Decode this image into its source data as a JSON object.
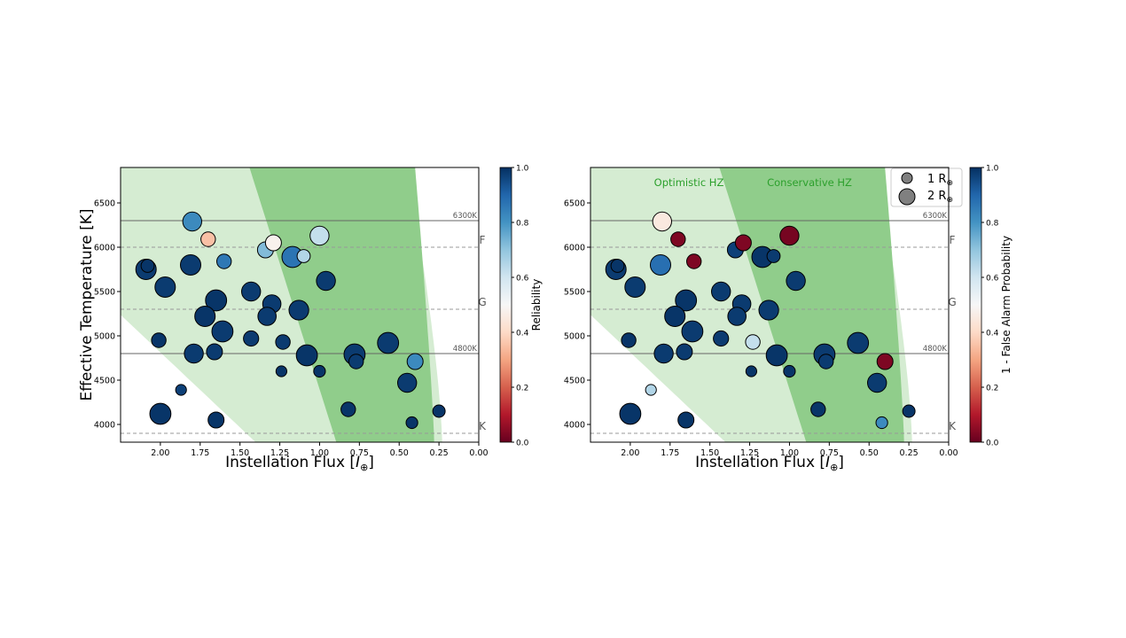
{
  "chart_data": [
    {
      "type": "scatter",
      "xlabel": "Instellation Flux [",
      "xlabel_unit": "I",
      "xlabel_end": "]",
      "ylabel": "Effective Temperature [K]",
      "colorbar_label": "Reliability",
      "colorbar_ticks": [
        "0.0",
        "0.2",
        "0.4",
        "0.6",
        "0.8",
        "1.0"
      ],
      "xticks": [
        "2.00",
        "1.75",
        "1.50",
        "1.25",
        "1.00",
        "0.75",
        "0.50",
        "0.25",
        "0.00"
      ],
      "yticks": [
        "4000",
        "4500",
        "5000",
        "5500",
        "6000",
        "6500"
      ],
      "xlim": [
        2.25,
        0.0
      ],
      "ylim": [
        3800,
        6900
      ],
      "x_inverted": true,
      "lines": [
        {
          "y": 6300,
          "style": "solid",
          "label": "6300K"
        },
        {
          "y": 6000,
          "style": "dashed",
          "label": "F"
        },
        {
          "y": 5300,
          "style": "dashed",
          "label": "G"
        },
        {
          "y": 4800,
          "style": "solid",
          "label": "4800K"
        },
        {
          "y": 3900,
          "style": "dashed",
          "label": "K"
        }
      ],
      "points": [
        {
          "x": 2.09,
          "y": 5750,
          "r": 1.4,
          "c": 0.98
        },
        {
          "x": 2.08,
          "y": 5790,
          "r": 0.9,
          "c": 0.99
        },
        {
          "x": 1.97,
          "y": 5550,
          "r": 1.4,
          "c": 0.98
        },
        {
          "x": 2.01,
          "y": 4950,
          "r": 1.0,
          "c": 0.99
        },
        {
          "x": 2.0,
          "y": 4120,
          "r": 1.45,
          "c": 0.99
        },
        {
          "x": 1.87,
          "y": 4390,
          "r": 0.75,
          "c": 0.97
        },
        {
          "x": 1.8,
          "y": 6290,
          "r": 1.3,
          "c": 0.82
        },
        {
          "x": 1.7,
          "y": 6090,
          "r": 1.0,
          "c": 0.35
        },
        {
          "x": 1.81,
          "y": 5800,
          "r": 1.4,
          "c": 0.98
        },
        {
          "x": 1.6,
          "y": 5840,
          "r": 1.0,
          "c": 0.86
        },
        {
          "x": 1.65,
          "y": 5400,
          "r": 1.45,
          "c": 0.99
        },
        {
          "x": 1.72,
          "y": 5220,
          "r": 1.4,
          "c": 0.99
        },
        {
          "x": 1.61,
          "y": 5050,
          "r": 1.45,
          "c": 0.98
        },
        {
          "x": 1.79,
          "y": 4800,
          "r": 1.3,
          "c": 0.98
        },
        {
          "x": 1.66,
          "y": 4820,
          "r": 1.1,
          "c": 0.98
        },
        {
          "x": 1.65,
          "y": 4050,
          "r": 1.1,
          "c": 0.99
        },
        {
          "x": 1.43,
          "y": 5500,
          "r": 1.3,
          "c": 0.98
        },
        {
          "x": 1.34,
          "y": 5970,
          "r": 1.1,
          "c": 0.72
        },
        {
          "x": 1.29,
          "y": 6050,
          "r": 1.1,
          "c": 0.48
        },
        {
          "x": 1.3,
          "y": 5360,
          "r": 1.25,
          "c": 0.98
        },
        {
          "x": 1.33,
          "y": 5220,
          "r": 1.25,
          "c": 0.98
        },
        {
          "x": 1.43,
          "y": 4970,
          "r": 1.05,
          "c": 0.98
        },
        {
          "x": 1.17,
          "y": 5890,
          "r": 1.45,
          "c": 0.87
        },
        {
          "x": 1.1,
          "y": 5900,
          "r": 0.9,
          "c": 0.65
        },
        {
          "x": 1.0,
          "y": 6130,
          "r": 1.3,
          "c": 0.62
        },
        {
          "x": 1.13,
          "y": 5290,
          "r": 1.35,
          "c": 0.98
        },
        {
          "x": 0.96,
          "y": 5620,
          "r": 1.3,
          "c": 0.98
        },
        {
          "x": 1.23,
          "y": 4930,
          "r": 1.0,
          "c": 0.98
        },
        {
          "x": 1.24,
          "y": 4600,
          "r": 0.75,
          "c": 0.99
        },
        {
          "x": 1.08,
          "y": 4780,
          "r": 1.45,
          "c": 0.99
        },
        {
          "x": 1.0,
          "y": 4600,
          "r": 0.8,
          "c": 0.99
        },
        {
          "x": 0.78,
          "y": 4790,
          "r": 1.45,
          "c": 0.98
        },
        {
          "x": 0.77,
          "y": 4710,
          "r": 1.0,
          "c": 0.98
        },
        {
          "x": 0.82,
          "y": 4170,
          "r": 1.0,
          "c": 0.99
        },
        {
          "x": 0.57,
          "y": 4920,
          "r": 1.45,
          "c": 0.98
        },
        {
          "x": 0.45,
          "y": 4470,
          "r": 1.3,
          "c": 0.98
        },
        {
          "x": 0.4,
          "y": 4710,
          "r": 1.1,
          "c": 0.82
        },
        {
          "x": 0.42,
          "y": 4020,
          "r": 0.8,
          "c": 0.99
        },
        {
          "x": 0.25,
          "y": 4150,
          "r": 0.85,
          "c": 0.99
        }
      ]
    },
    {
      "type": "scatter",
      "xlabel": "Instellation Flux [",
      "xlabel_unit": "I",
      "xlabel_end": "]",
      "ylabel": "",
      "colorbar_label": "1 - False Alarm Probability",
      "colorbar_ticks": [
        "0.0",
        "0.2",
        "0.4",
        "0.6",
        "0.8",
        "1.0"
      ],
      "xticks": [
        "2.00",
        "1.75",
        "1.50",
        "1.25",
        "1.00",
        "0.75",
        "0.50",
        "0.25",
        "0.00"
      ],
      "yticks": [
        "4000",
        "4500",
        "5000",
        "5500",
        "6000",
        "6500"
      ],
      "xlim": [
        2.25,
        0.0
      ],
      "ylim": [
        3800,
        6900
      ],
      "x_inverted": true,
      "zone_labels": {
        "optimistic": "Optimistic HZ",
        "conservative": "Conservative HZ"
      },
      "legend": {
        "placement": "top-right",
        "entries": [
          {
            "text": "1 R",
            "sub": "⊕",
            "r": 1.0
          },
          {
            "text": "2 R",
            "sub": "⊕",
            "r": 2.0
          }
        ]
      },
      "lines": [
        {
          "y": 6300,
          "style": "solid",
          "label": "6300K"
        },
        {
          "y": 6000,
          "style": "dashed",
          "label": "F"
        },
        {
          "y": 5300,
          "style": "dashed",
          "label": "G"
        },
        {
          "y": 4800,
          "style": "solid",
          "label": "4800K"
        },
        {
          "y": 3900,
          "style": "dashed",
          "label": "K"
        }
      ],
      "points": [
        {
          "x": 2.09,
          "y": 5750,
          "r": 1.4,
          "c": 0.98
        },
        {
          "x": 2.08,
          "y": 5790,
          "r": 0.9,
          "c": 0.99
        },
        {
          "x": 1.97,
          "y": 5550,
          "r": 1.4,
          "c": 0.98
        },
        {
          "x": 2.01,
          "y": 4950,
          "r": 1.0,
          "c": 0.99
        },
        {
          "x": 2.0,
          "y": 4120,
          "r": 1.45,
          "c": 0.99
        },
        {
          "x": 1.87,
          "y": 4390,
          "r": 0.75,
          "c": 0.65
        },
        {
          "x": 1.8,
          "y": 6290,
          "r": 1.3,
          "c": 0.45
        },
        {
          "x": 1.7,
          "y": 6090,
          "r": 1.0,
          "c": 0.03
        },
        {
          "x": 1.81,
          "y": 5800,
          "r": 1.4,
          "c": 0.88
        },
        {
          "x": 1.6,
          "y": 5840,
          "r": 1.0,
          "c": 0.03
        },
        {
          "x": 1.65,
          "y": 5400,
          "r": 1.45,
          "c": 0.99
        },
        {
          "x": 1.72,
          "y": 5220,
          "r": 1.4,
          "c": 0.99
        },
        {
          "x": 1.61,
          "y": 5050,
          "r": 1.45,
          "c": 0.98
        },
        {
          "x": 1.79,
          "y": 4800,
          "r": 1.3,
          "c": 0.98
        },
        {
          "x": 1.66,
          "y": 4820,
          "r": 1.1,
          "c": 0.98
        },
        {
          "x": 1.65,
          "y": 4050,
          "r": 1.1,
          "c": 0.99
        },
        {
          "x": 1.43,
          "y": 5500,
          "r": 1.3,
          "c": 0.98
        },
        {
          "x": 1.34,
          "y": 5970,
          "r": 1.1,
          "c": 0.97
        },
        {
          "x": 1.29,
          "y": 6050,
          "r": 1.1,
          "c": 0.03
        },
        {
          "x": 1.3,
          "y": 5360,
          "r": 1.25,
          "c": 0.98
        },
        {
          "x": 1.33,
          "y": 5220,
          "r": 1.25,
          "c": 0.98
        },
        {
          "x": 1.43,
          "y": 4970,
          "r": 1.05,
          "c": 0.98
        },
        {
          "x": 1.17,
          "y": 5890,
          "r": 1.45,
          "c": 0.99
        },
        {
          "x": 1.1,
          "y": 5900,
          "r": 0.9,
          "c": 0.98
        },
        {
          "x": 1.0,
          "y": 6130,
          "r": 1.3,
          "c": 0.02
        },
        {
          "x": 1.13,
          "y": 5290,
          "r": 1.35,
          "c": 0.98
        },
        {
          "x": 0.96,
          "y": 5620,
          "r": 1.3,
          "c": 0.98
        },
        {
          "x": 1.23,
          "y": 4930,
          "r": 1.0,
          "c": 0.62
        },
        {
          "x": 1.24,
          "y": 4600,
          "r": 0.75,
          "c": 0.99
        },
        {
          "x": 1.08,
          "y": 4780,
          "r": 1.45,
          "c": 0.99
        },
        {
          "x": 1.0,
          "y": 4600,
          "r": 0.8,
          "c": 0.99
        },
        {
          "x": 0.78,
          "y": 4790,
          "r": 1.45,
          "c": 0.98
        },
        {
          "x": 0.77,
          "y": 4710,
          "r": 1.0,
          "c": 0.98
        },
        {
          "x": 0.82,
          "y": 4170,
          "r": 1.0,
          "c": 0.99
        },
        {
          "x": 0.57,
          "y": 4920,
          "r": 1.45,
          "c": 0.98
        },
        {
          "x": 0.45,
          "y": 4470,
          "r": 1.3,
          "c": 0.98
        },
        {
          "x": 0.4,
          "y": 4710,
          "r": 1.1,
          "c": 0.03
        },
        {
          "x": 0.42,
          "y": 4020,
          "r": 0.8,
          "c": 0.82
        },
        {
          "x": 0.25,
          "y": 4150,
          "r": 0.85,
          "c": 0.99
        }
      ]
    }
  ],
  "colors": {
    "optimistic_hz": "#d5ecd2",
    "conservative_hz": "#90cd8b",
    "zone_label": "#2ca02c",
    "cmap": [
      "#67001f",
      "#b2182b",
      "#d6604d",
      "#f4a582",
      "#fddbc7",
      "#f7f7f7",
      "#d1e5f0",
      "#92c5de",
      "#4393c3",
      "#2166ac",
      "#053061"
    ]
  }
}
